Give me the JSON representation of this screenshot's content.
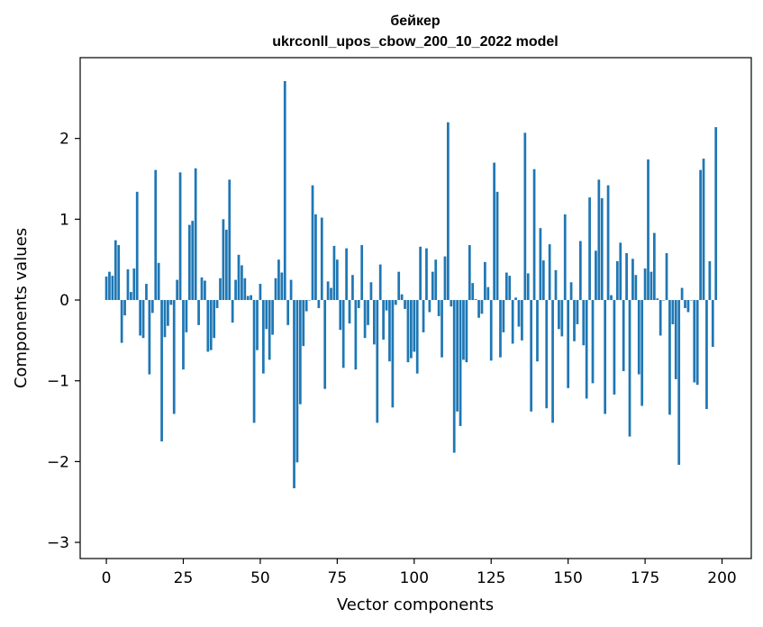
{
  "chart_data": {
    "type": "bar",
    "title": "бейкер",
    "subtitle": "ukrconll_upos_cbow_200_10_2022 model",
    "xlabel": "Vector components",
    "ylabel": "Components values",
    "xlim": [
      -8.5,
      209.5
    ],
    "ylim": [
      -3.2,
      3.0
    ],
    "xticks": [
      0,
      25,
      50,
      75,
      100,
      125,
      150,
      175,
      200
    ],
    "yticks": [
      -3,
      -2,
      -1,
      0,
      1,
      2
    ],
    "bar_color": "#1f77b4",
    "grid": false,
    "values": [
      0.29,
      0.35,
      0.3,
      0.74,
      0.68,
      -0.53,
      -0.19,
      0.38,
      0.1,
      0.39,
      1.34,
      -0.44,
      -0.47,
      0.2,
      -0.92,
      -0.16,
      1.61,
      0.46,
      -1.75,
      -0.46,
      -0.32,
      -0.06,
      -1.41,
      0.25,
      1.58,
      -0.86,
      -0.4,
      0.93,
      0.98,
      1.63,
      -0.31,
      0.28,
      0.24,
      -0.64,
      -0.62,
      -0.47,
      -0.1,
      0.27,
      1.0,
      0.87,
      1.49,
      -0.28,
      0.25,
      0.56,
      0.43,
      0.27,
      0.05,
      0.06,
      -1.52,
      -0.62,
      0.2,
      -0.91,
      -0.36,
      -0.74,
      -0.43,
      0.27,
      0.5,
      0.34,
      2.71,
      -0.31,
      0.25,
      -2.33,
      -2.01,
      -1.29,
      -0.57,
      -0.14,
      0.0,
      1.42,
      1.06,
      -0.1,
      1.02,
      -1.1,
      0.23,
      0.15,
      0.67,
      0.5,
      -0.37,
      -0.84,
      0.64,
      -0.29,
      0.31,
      -0.86,
      -0.1,
      0.68,
      -0.47,
      -0.31,
      0.22,
      -0.55,
      -1.52,
      0.44,
      -0.49,
      -0.13,
      -0.76,
      -1.33,
      -0.06,
      0.35,
      0.07,
      -0.11,
      -0.77,
      -0.72,
      -0.64,
      -0.91,
      0.66,
      -0.4,
      0.64,
      -0.15,
      0.35,
      0.5,
      -0.2,
      -0.71,
      0.54,
      2.2,
      -0.08,
      -1.89,
      -1.38,
      -1.56,
      -0.74,
      -0.77,
      0.68,
      0.21,
      0.01,
      -0.22,
      -0.17,
      0.47,
      0.16,
      -0.75,
      1.7,
      1.34,
      -0.71,
      -0.4,
      0.34,
      0.3,
      -0.54,
      0.03,
      -0.33,
      -0.5,
      2.07,
      0.33,
      -1.38,
      1.62,
      -0.76,
      0.89,
      0.49,
      -1.34,
      0.69,
      -1.52,
      0.37,
      -0.36,
      -0.45,
      1.06,
      -1.09,
      0.22,
      -0.51,
      -0.3,
      0.73,
      -0.56,
      -1.22,
      1.27,
      -1.03,
      0.61,
      1.49,
      1.26,
      -1.41,
      1.42,
      0.06,
      -1.17,
      0.48,
      0.71,
      -0.88,
      0.58,
      -1.69,
      0.51,
      0.31,
      -0.92,
      -1.31,
      0.39,
      1.74,
      0.35,
      0.83,
      0.02,
      -0.44,
      0.0,
      0.58,
      -1.42,
      -0.3,
      -0.98,
      -2.04,
      0.15,
      -0.1,
      -0.15,
      0.0,
      -1.02,
      -1.05,
      1.61,
      1.75,
      -1.35,
      0.48,
      -0.58,
      2.14
    ]
  }
}
